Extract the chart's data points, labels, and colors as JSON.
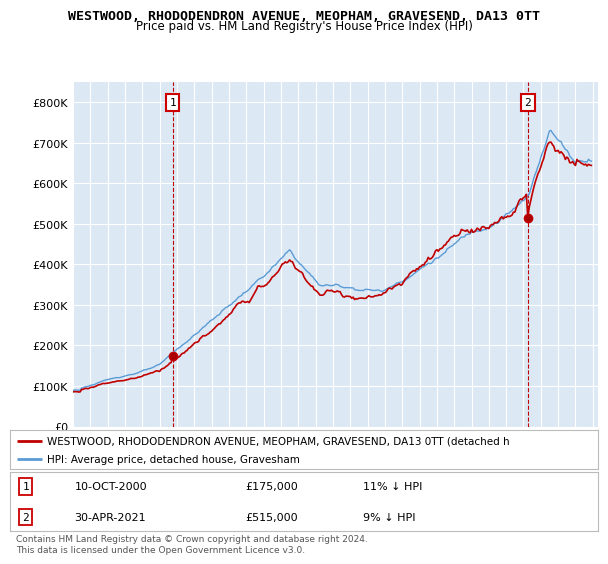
{
  "title": "WESTWOOD, RHODODENDRON AVENUE, MEOPHAM, GRAVESEND, DA13 0TT",
  "subtitle": "Price paid vs. HM Land Registry's House Price Index (HPI)",
  "ylim": [
    0,
    850000
  ],
  "yticks": [
    0,
    100000,
    200000,
    300000,
    400000,
    500000,
    600000,
    700000,
    800000
  ],
  "ytick_labels": [
    "£0",
    "£100K",
    "£200K",
    "£300K",
    "£400K",
    "£500K",
    "£600K",
    "£700K",
    "£800K"
  ],
  "hpi_color": "#5b9bd5",
  "price_color": "#c00000",
  "sale1_price": 175000,
  "sale1_year": "10-OCT-2000",
  "sale1_pct": "11% ↓ HPI",
  "sale2_price": 515000,
  "sale2_year": "30-APR-2021",
  "sale2_pct": "9% ↓ HPI",
  "legend_red_label": "WESTWOOD, RHODODENDRON AVENUE, MEOPHAM, GRAVESEND, DA13 0TT (detached h",
  "legend_blue_label": "HPI: Average price, detached house, Gravesham",
  "footnote": "Contains HM Land Registry data © Crown copyright and database right 2024.\nThis data is licensed under the Open Government Licence v3.0.",
  "background_color": "#ffffff",
  "plot_bg_color": "#dce9f5",
  "grid_color": "#ffffff",
  "title_fontsize": 9.5,
  "subtitle_fontsize": 8.5
}
